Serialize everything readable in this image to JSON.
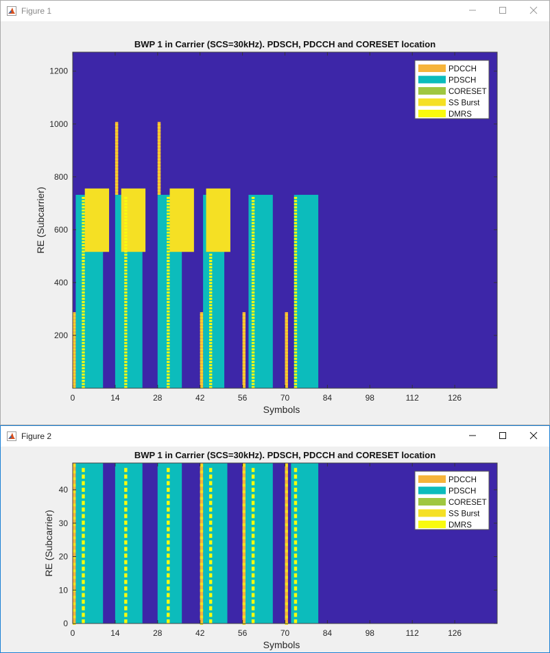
{
  "windows": [
    {
      "title": "Figure 1",
      "active": false
    },
    {
      "title": "Figure 2",
      "active": true
    }
  ],
  "window_controls": {
    "minimize": "minimize",
    "maximize": "maximize",
    "close": "close"
  },
  "colors": {
    "background": "#3d26a8",
    "PDCCH": "#f6b43a",
    "PDSCH": "#0cbcbc",
    "CORESET": "#9fc740",
    "SS Burst": "#f5e024",
    "DMRS": "#f9fb0e"
  },
  "chart_data": [
    {
      "type": "heatmap",
      "title": "BWP 1 in Carrier (SCS=30kHz). PDSCH, PDCCH and CORESET location",
      "xlabel": "Symbols",
      "ylabel": "RE (Subcarrier)",
      "xlim": [
        0,
        140
      ],
      "ylim": [
        0,
        1272
      ],
      "xticks": [
        0,
        14,
        28,
        42,
        56,
        70,
        84,
        98,
        112,
        126
      ],
      "yticks": [
        200,
        400,
        600,
        800,
        1000,
        1200
      ],
      "legend": {
        "position": "top-right",
        "entries": [
          "PDCCH",
          "PDSCH",
          "CORESET",
          "SS Burst",
          "DMRS"
        ]
      },
      "regions": [
        {
          "channel": "PDSCH",
          "symbols": [
            1,
            10
          ],
          "re": [
            0,
            732
          ]
        },
        {
          "channel": "PDSCH",
          "symbols": [
            14,
            23
          ],
          "re": [
            0,
            732
          ]
        },
        {
          "channel": "PDSCH",
          "symbols": [
            28,
            36
          ],
          "re": [
            0,
            732
          ]
        },
        {
          "channel": "PDSCH",
          "symbols": [
            43,
            50
          ],
          "re": [
            0,
            732
          ]
        },
        {
          "channel": "PDSCH",
          "symbols": [
            58,
            66
          ],
          "re": [
            0,
            732
          ]
        },
        {
          "channel": "PDSCH",
          "symbols": [
            73,
            81
          ],
          "re": [
            0,
            732
          ]
        },
        {
          "channel": "SS Burst",
          "symbols": [
            4,
            12
          ],
          "re": [
            516,
            756
          ]
        },
        {
          "channel": "SS Burst",
          "symbols": [
            16,
            24
          ],
          "re": [
            516,
            756
          ]
        },
        {
          "channel": "SS Burst",
          "symbols": [
            32,
            40
          ],
          "re": [
            516,
            756
          ]
        },
        {
          "channel": "SS Burst",
          "symbols": [
            44,
            52
          ],
          "re": [
            516,
            756
          ]
        },
        {
          "channel": "PDCCH",
          "symbols": [
            0,
            1
          ],
          "re": [
            0,
            288
          ]
        },
        {
          "channel": "PDCCH",
          "symbols": [
            14,
            15
          ],
          "re": [
            732,
            1008
          ]
        },
        {
          "channel": "PDCCH",
          "symbols": [
            28,
            29
          ],
          "re": [
            732,
            1008
          ]
        },
        {
          "channel": "PDCCH",
          "symbols": [
            42,
            43
          ],
          "re": [
            0,
            288
          ]
        },
        {
          "channel": "PDCCH",
          "symbols": [
            56,
            57
          ],
          "re": [
            0,
            288
          ]
        },
        {
          "channel": "PDCCH",
          "symbols": [
            70,
            71
          ],
          "re": [
            0,
            288
          ]
        },
        {
          "channel": "DMRS",
          "symbols": [
            3,
            4
          ],
          "re": [
            0,
            732
          ]
        },
        {
          "channel": "DMRS",
          "symbols": [
            17,
            18
          ],
          "re": [
            0,
            732
          ]
        },
        {
          "channel": "DMRS",
          "symbols": [
            31,
            32
          ],
          "re": [
            0,
            732
          ]
        },
        {
          "channel": "DMRS",
          "symbols": [
            45,
            46
          ],
          "re": [
            0,
            516
          ]
        },
        {
          "channel": "DMRS",
          "symbols": [
            59,
            60
          ],
          "re": [
            0,
            732
          ]
        },
        {
          "channel": "DMRS",
          "symbols": [
            73,
            74
          ],
          "re": [
            0,
            732
          ]
        }
      ]
    },
    {
      "type": "heatmap",
      "title": "BWP 1 in Carrier (SCS=30kHz). PDSCH, PDCCH and CORESET location",
      "xlabel": "Symbols",
      "ylabel": "RE (Subcarrier)",
      "xlim": [
        0,
        140
      ],
      "ylim": [
        0,
        48
      ],
      "xticks": [
        0,
        14,
        28,
        42,
        56,
        70,
        84,
        98,
        112,
        126
      ],
      "yticks": [
        0,
        10,
        20,
        30,
        40
      ],
      "legend": {
        "position": "top-right",
        "entries": [
          "PDCCH",
          "PDSCH",
          "CORESET",
          "SS Burst",
          "DMRS"
        ]
      },
      "regions": [
        {
          "channel": "PDSCH",
          "symbols": [
            1,
            10
          ],
          "re": [
            0,
            48
          ]
        },
        {
          "channel": "PDSCH",
          "symbols": [
            14,
            23
          ],
          "re": [
            0,
            48
          ]
        },
        {
          "channel": "PDSCH",
          "symbols": [
            28,
            36
          ],
          "re": [
            0,
            48
          ]
        },
        {
          "channel": "PDSCH",
          "symbols": [
            43,
            51
          ],
          "re": [
            0,
            48
          ]
        },
        {
          "channel": "PDSCH",
          "symbols": [
            57,
            66
          ],
          "re": [
            0,
            48
          ]
        },
        {
          "channel": "PDSCH",
          "symbols": [
            72,
            81
          ],
          "re": [
            0,
            48
          ]
        },
        {
          "channel": "PDCCH",
          "symbols": [
            0,
            1
          ],
          "re": [
            0,
            48
          ]
        },
        {
          "channel": "PDCCH",
          "symbols": [
            42,
            43
          ],
          "re": [
            0,
            48
          ]
        },
        {
          "channel": "PDCCH",
          "symbols": [
            56,
            57
          ],
          "re": [
            0,
            48
          ]
        },
        {
          "channel": "PDCCH",
          "symbols": [
            70,
            71
          ],
          "re": [
            0,
            48
          ]
        },
        {
          "channel": "DMRS",
          "symbols": [
            3,
            4
          ],
          "re": [
            0,
            48
          ]
        },
        {
          "channel": "DMRS",
          "symbols": [
            17,
            18
          ],
          "re": [
            0,
            48
          ]
        },
        {
          "channel": "DMRS",
          "symbols": [
            31,
            32
          ],
          "re": [
            0,
            48
          ]
        },
        {
          "channel": "DMRS",
          "symbols": [
            45,
            46
          ],
          "re": [
            0,
            48
          ]
        },
        {
          "channel": "DMRS",
          "symbols": [
            59,
            60
          ],
          "re": [
            0,
            48
          ]
        },
        {
          "channel": "DMRS",
          "symbols": [
            73,
            74
          ],
          "re": [
            0,
            48
          ]
        }
      ]
    }
  ]
}
